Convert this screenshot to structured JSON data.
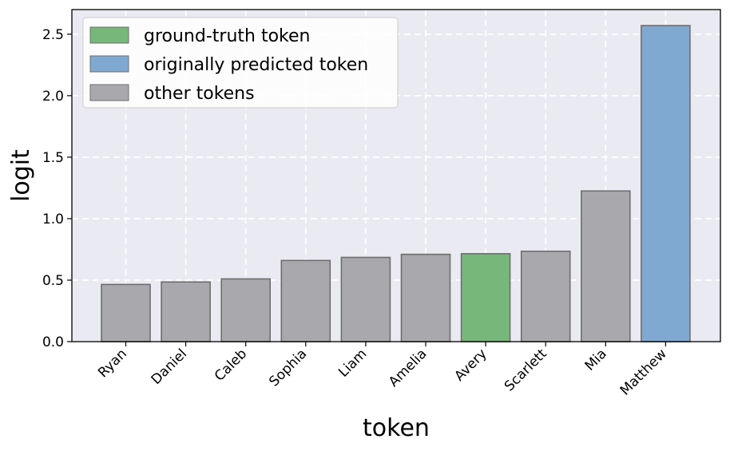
{
  "chart_data": {
    "type": "bar",
    "title": "",
    "xlabel": "token",
    "ylabel": "logit",
    "categories": [
      "Ryan",
      "Daniel",
      "Caleb",
      "Sophia",
      "Liam",
      "Amelia",
      "Avery",
      "Scarlett",
      "Mia",
      "Matthew"
    ],
    "values": [
      0.465,
      0.485,
      0.51,
      0.66,
      0.685,
      0.71,
      0.715,
      0.735,
      1.225,
      2.57
    ],
    "bar_groups": [
      "other",
      "other",
      "other",
      "other",
      "other",
      "other",
      "ground_truth",
      "other",
      "other",
      "predicted"
    ],
    "ylim": [
      0,
      2.7
    ],
    "yticks": [
      "0.0",
      "0.5",
      "1.0",
      "1.5",
      "2.0",
      "2.5"
    ],
    "grid": true,
    "legend_position": "top-left",
    "legend": [
      {
        "key": "ground_truth",
        "label": "ground-truth token",
        "color": "#77b77a"
      },
      {
        "key": "predicted",
        "label": "originally predicted token",
        "color": "#80a9d2"
      },
      {
        "key": "other",
        "label": "other tokens",
        "color": "#a9a8ad"
      }
    ],
    "colors": {
      "background": "#eaeaf2",
      "grid": "#ffffff",
      "bar_edge": "#6e6e6e",
      "ground_truth": "#77b77a",
      "predicted": "#80a9d2",
      "other": "#a9a8ad"
    }
  }
}
